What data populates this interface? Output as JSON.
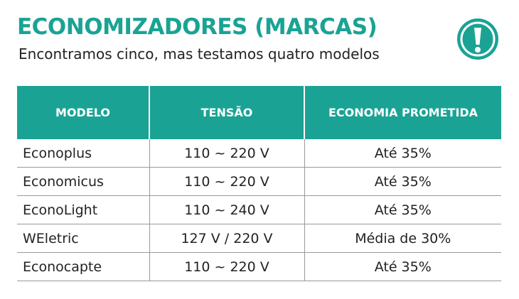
{
  "header": {
    "title": "ECONOMIZADORES (MARCAS)",
    "subtitle": "Encontramos cinco, mas testamos quatro modelos"
  },
  "table": {
    "columns": [
      "MODELO",
      "TENSÃO",
      "ECONOMIA PROMETIDA"
    ],
    "rows": [
      [
        "Econoplus",
        "110 ~ 220 V",
        "Até 35%"
      ],
      [
        "Economicus",
        "110 ~ 220 V",
        "Até 35%"
      ],
      [
        "EconoLight",
        "110 ~ 240 V",
        "Até 35%"
      ],
      [
        "WEletric",
        "127 V / 220 V",
        "Média de 30%"
      ],
      [
        "Econocapte",
        "110 ~ 220 V",
        "Até 35%"
      ]
    ]
  }
}
